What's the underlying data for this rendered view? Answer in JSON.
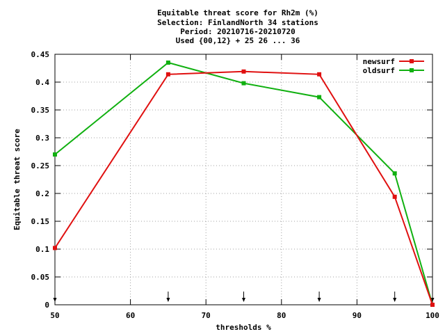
{
  "chart_data": {
    "type": "line",
    "title_lines": [
      "Equitable threat score  for Rh2m (%)",
      "Selection: FinlandNorth     34 stations",
      "Period: 20210716-20210720",
      "Used {00,12} + 25 26 ... 36"
    ],
    "xlabel": "thresholds %",
    "ylabel": "Equitable threat score",
    "xlim": [
      50,
      100
    ],
    "ylim": [
      0,
      0.45
    ],
    "x_ticks": [
      50,
      60,
      70,
      80,
      90,
      100
    ],
    "y_ticks": [
      0,
      0.05,
      0.1,
      0.15,
      0.2,
      0.25,
      0.3,
      0.35,
      0.4,
      0.45
    ],
    "y_tick_labels": [
      "0",
      "0.05",
      "0.1",
      "0.15",
      "0.2",
      "0.25",
      "0.3",
      "0.35",
      "0.4",
      "0.45"
    ],
    "grid": true,
    "legend_position": "top-right",
    "threshold_markers": [
      50,
      65,
      75,
      85,
      95,
      100
    ],
    "series": [
      {
        "name": "newsurf",
        "color": "#e01010",
        "x": [
          50,
          65,
          75,
          85,
          95,
          100
        ],
        "y": [
          0.102,
          0.414,
          0.419,
          0.414,
          0.194,
          0.0
        ]
      },
      {
        "name": "oldsurf",
        "color": "#10b010",
        "x": [
          50,
          65,
          75,
          85,
          95,
          100
        ],
        "y": [
          0.27,
          0.435,
          0.398,
          0.373,
          0.236,
          0.0
        ]
      }
    ]
  }
}
